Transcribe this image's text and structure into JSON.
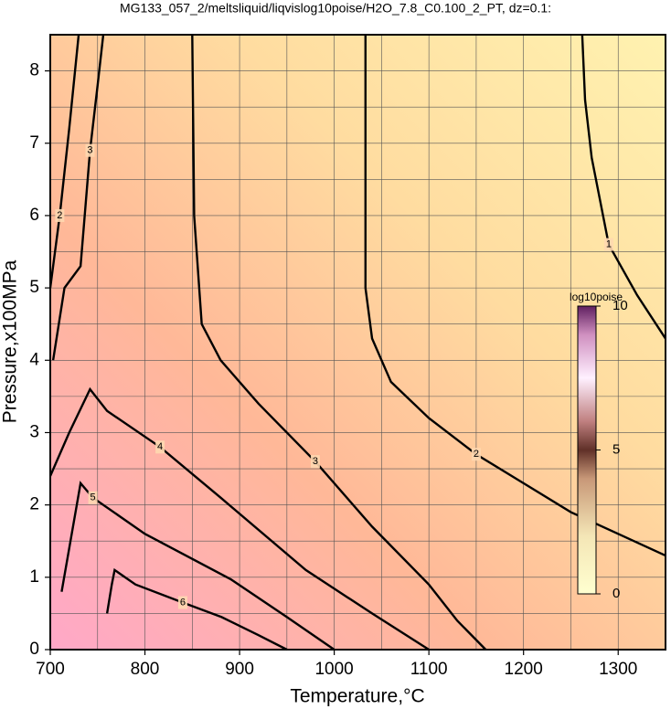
{
  "chart_data": {
    "type": "contour",
    "title": "MG133_057_2/meltsliquid/liqvislog10poise/H2O_7.8_C0.100_2_PT, dz=0.1:",
    "x_label": "Temperature,°C",
    "y_label": "Pressure,x100MPa",
    "xlim": [
      700,
      1350
    ],
    "ylim": [
      0,
      8.5
    ],
    "xticks": [
      700,
      800,
      900,
      1000,
      1100,
      1200,
      1300
    ],
    "yticks": [
      0,
      1,
      2,
      3,
      4,
      5,
      6,
      7,
      8
    ],
    "xgrid": [
      700,
      750,
      800,
      850,
      900,
      950,
      1000,
      1050,
      1100,
      1150,
      1200,
      1250,
      1300,
      1350
    ],
    "ygrid": [
      0.5,
      1,
      1.5,
      2,
      2.5,
      3,
      3.5,
      4,
      4.5,
      5,
      5.5,
      6,
      6.5,
      7,
      7.5,
      8
    ],
    "grid": true,
    "contours": [
      {
        "level": 1,
        "color": "#000000",
        "x": [
          1262,
          1265,
          1272,
          1290,
          1320,
          1350
        ],
        "y": [
          8.5,
          7.6,
          6.8,
          5.6,
          4.9,
          4.3
        ]
      },
      {
        "level": 2,
        "color": "#000000",
        "x": [
          1033,
          1033,
          1040,
          1060,
          1100,
          1150,
          1200,
          1250,
          1300,
          1350
        ],
        "y": [
          8.5,
          5.0,
          4.3,
          3.7,
          3.2,
          2.7,
          2.3,
          1.9,
          1.6,
          1.3
        ]
      },
      {
        "level": 3,
        "color": "#000000",
        "x": [
          850,
          852,
          860,
          880,
          920,
          980,
          1040,
          1100,
          1130,
          1160
        ],
        "y": [
          8.5,
          6.0,
          4.5,
          4.0,
          3.4,
          2.6,
          1.7,
          0.9,
          0.4,
          0
        ]
      },
      {
        "level": 3,
        "color": "#000000",
        "x": [
          703,
          715,
          732,
          742,
          750,
          756
        ],
        "y": [
          4.0,
          5.0,
          5.3,
          6.9,
          7.8,
          8.5
        ]
      },
      {
        "level": 2,
        "color": "#000000",
        "x": [
          700,
          705,
          710,
          720,
          730
        ],
        "y": [
          5.0,
          5.5,
          6.0,
          7.2,
          8.5
        ]
      },
      {
        "level": 4,
        "color": "#000000",
        "x": [
          700,
          720,
          742,
          760,
          816,
          880,
          970,
          1040,
          1100
        ],
        "y": [
          2.4,
          3.0,
          3.6,
          3.3,
          2.8,
          2.1,
          1.1,
          0.5,
          0
        ]
      },
      {
        "level": 5,
        "color": "#000000",
        "x": [
          712,
          720,
          728,
          732,
          745,
          800,
          891,
          950,
          1000
        ],
        "y": [
          0.8,
          1.4,
          2.0,
          2.3,
          2.1,
          1.6,
          0.97,
          0.45,
          0
        ]
      },
      {
        "level": 6,
        "color": "#000000",
        "x": [
          760,
          765,
          768,
          790,
          840,
          881,
          920,
          950
        ],
        "y": [
          0.5,
          0.9,
          1.1,
          0.9,
          0.65,
          0.45,
          0.2,
          0
        ]
      }
    ],
    "colorbar": {
      "label": "log10poise",
      "clim": [
        0,
        10
      ],
      "ticks": [
        0,
        5,
        10
      ],
      "stops": [
        {
          "value": 0,
          "color": "#ffffd0"
        },
        {
          "value": 2,
          "color": "#f4e6b6"
        },
        {
          "value": 4,
          "color": "#c89878"
        },
        {
          "value": 5,
          "color": "#603028"
        },
        {
          "value": 6,
          "color": "#c08080"
        },
        {
          "value": 7.5,
          "color": "#fff0ff"
        },
        {
          "value": 9,
          "color": "#d090c0"
        },
        {
          "value": 10,
          "color": "#602060"
        }
      ]
    }
  }
}
